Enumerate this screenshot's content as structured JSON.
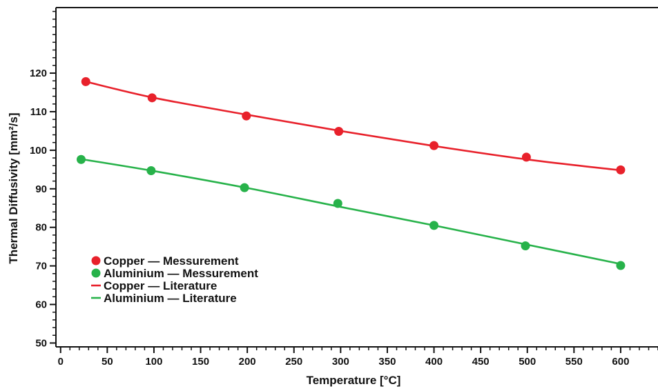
{
  "chart_data": {
    "type": "line",
    "title": "",
    "xlabel": "Temperature [°C]",
    "ylabel": "Thermal Diffusivity [mm²/s]",
    "xlim": [
      -5,
      640
    ],
    "ylim": [
      49,
      137
    ],
    "xticks": [
      0,
      50,
      100,
      150,
      200,
      250,
      300,
      350,
      400,
      450,
      500,
      550,
      600
    ],
    "yticks": [
      50,
      60,
      70,
      80,
      90,
      100,
      110,
      120
    ],
    "x_minor_step": 10,
    "y_minor_step": 2,
    "grid": false,
    "legend_position": "lower-left",
    "series": [
      {
        "name": "Copper — Messurement",
        "kind": "scatter",
        "color": "#e8212b",
        "x": [
          27,
          98,
          199,
          298,
          400,
          499,
          600
        ],
        "y": [
          117.8,
          113.6,
          108.9,
          104.9,
          101.2,
          98.2,
          94.9
        ]
      },
      {
        "name": "Aluminium — Messurement",
        "kind": "scatter",
        "color": "#27b24a",
        "x": [
          22,
          97,
          197,
          297,
          400,
          498,
          600
        ],
        "y": [
          97.6,
          94.7,
          90.3,
          86.2,
          80.5,
          75.2,
          70.1
        ]
      },
      {
        "name": "Copper — Literature",
        "kind": "line",
        "color": "#e8212b",
        "x": [
          27,
          100,
          200,
          300,
          400,
          500,
          600
        ],
        "y": [
          117.8,
          113.6,
          109.2,
          105.0,
          101.1,
          97.6,
          94.8
        ]
      },
      {
        "name": "Aluminium — Literature",
        "kind": "line",
        "color": "#27b24a",
        "x": [
          22,
          100,
          200,
          300,
          400,
          500,
          600
        ],
        "y": [
          97.7,
          94.6,
          90.2,
          85.3,
          80.5,
          75.5,
          70.5
        ]
      }
    ]
  }
}
